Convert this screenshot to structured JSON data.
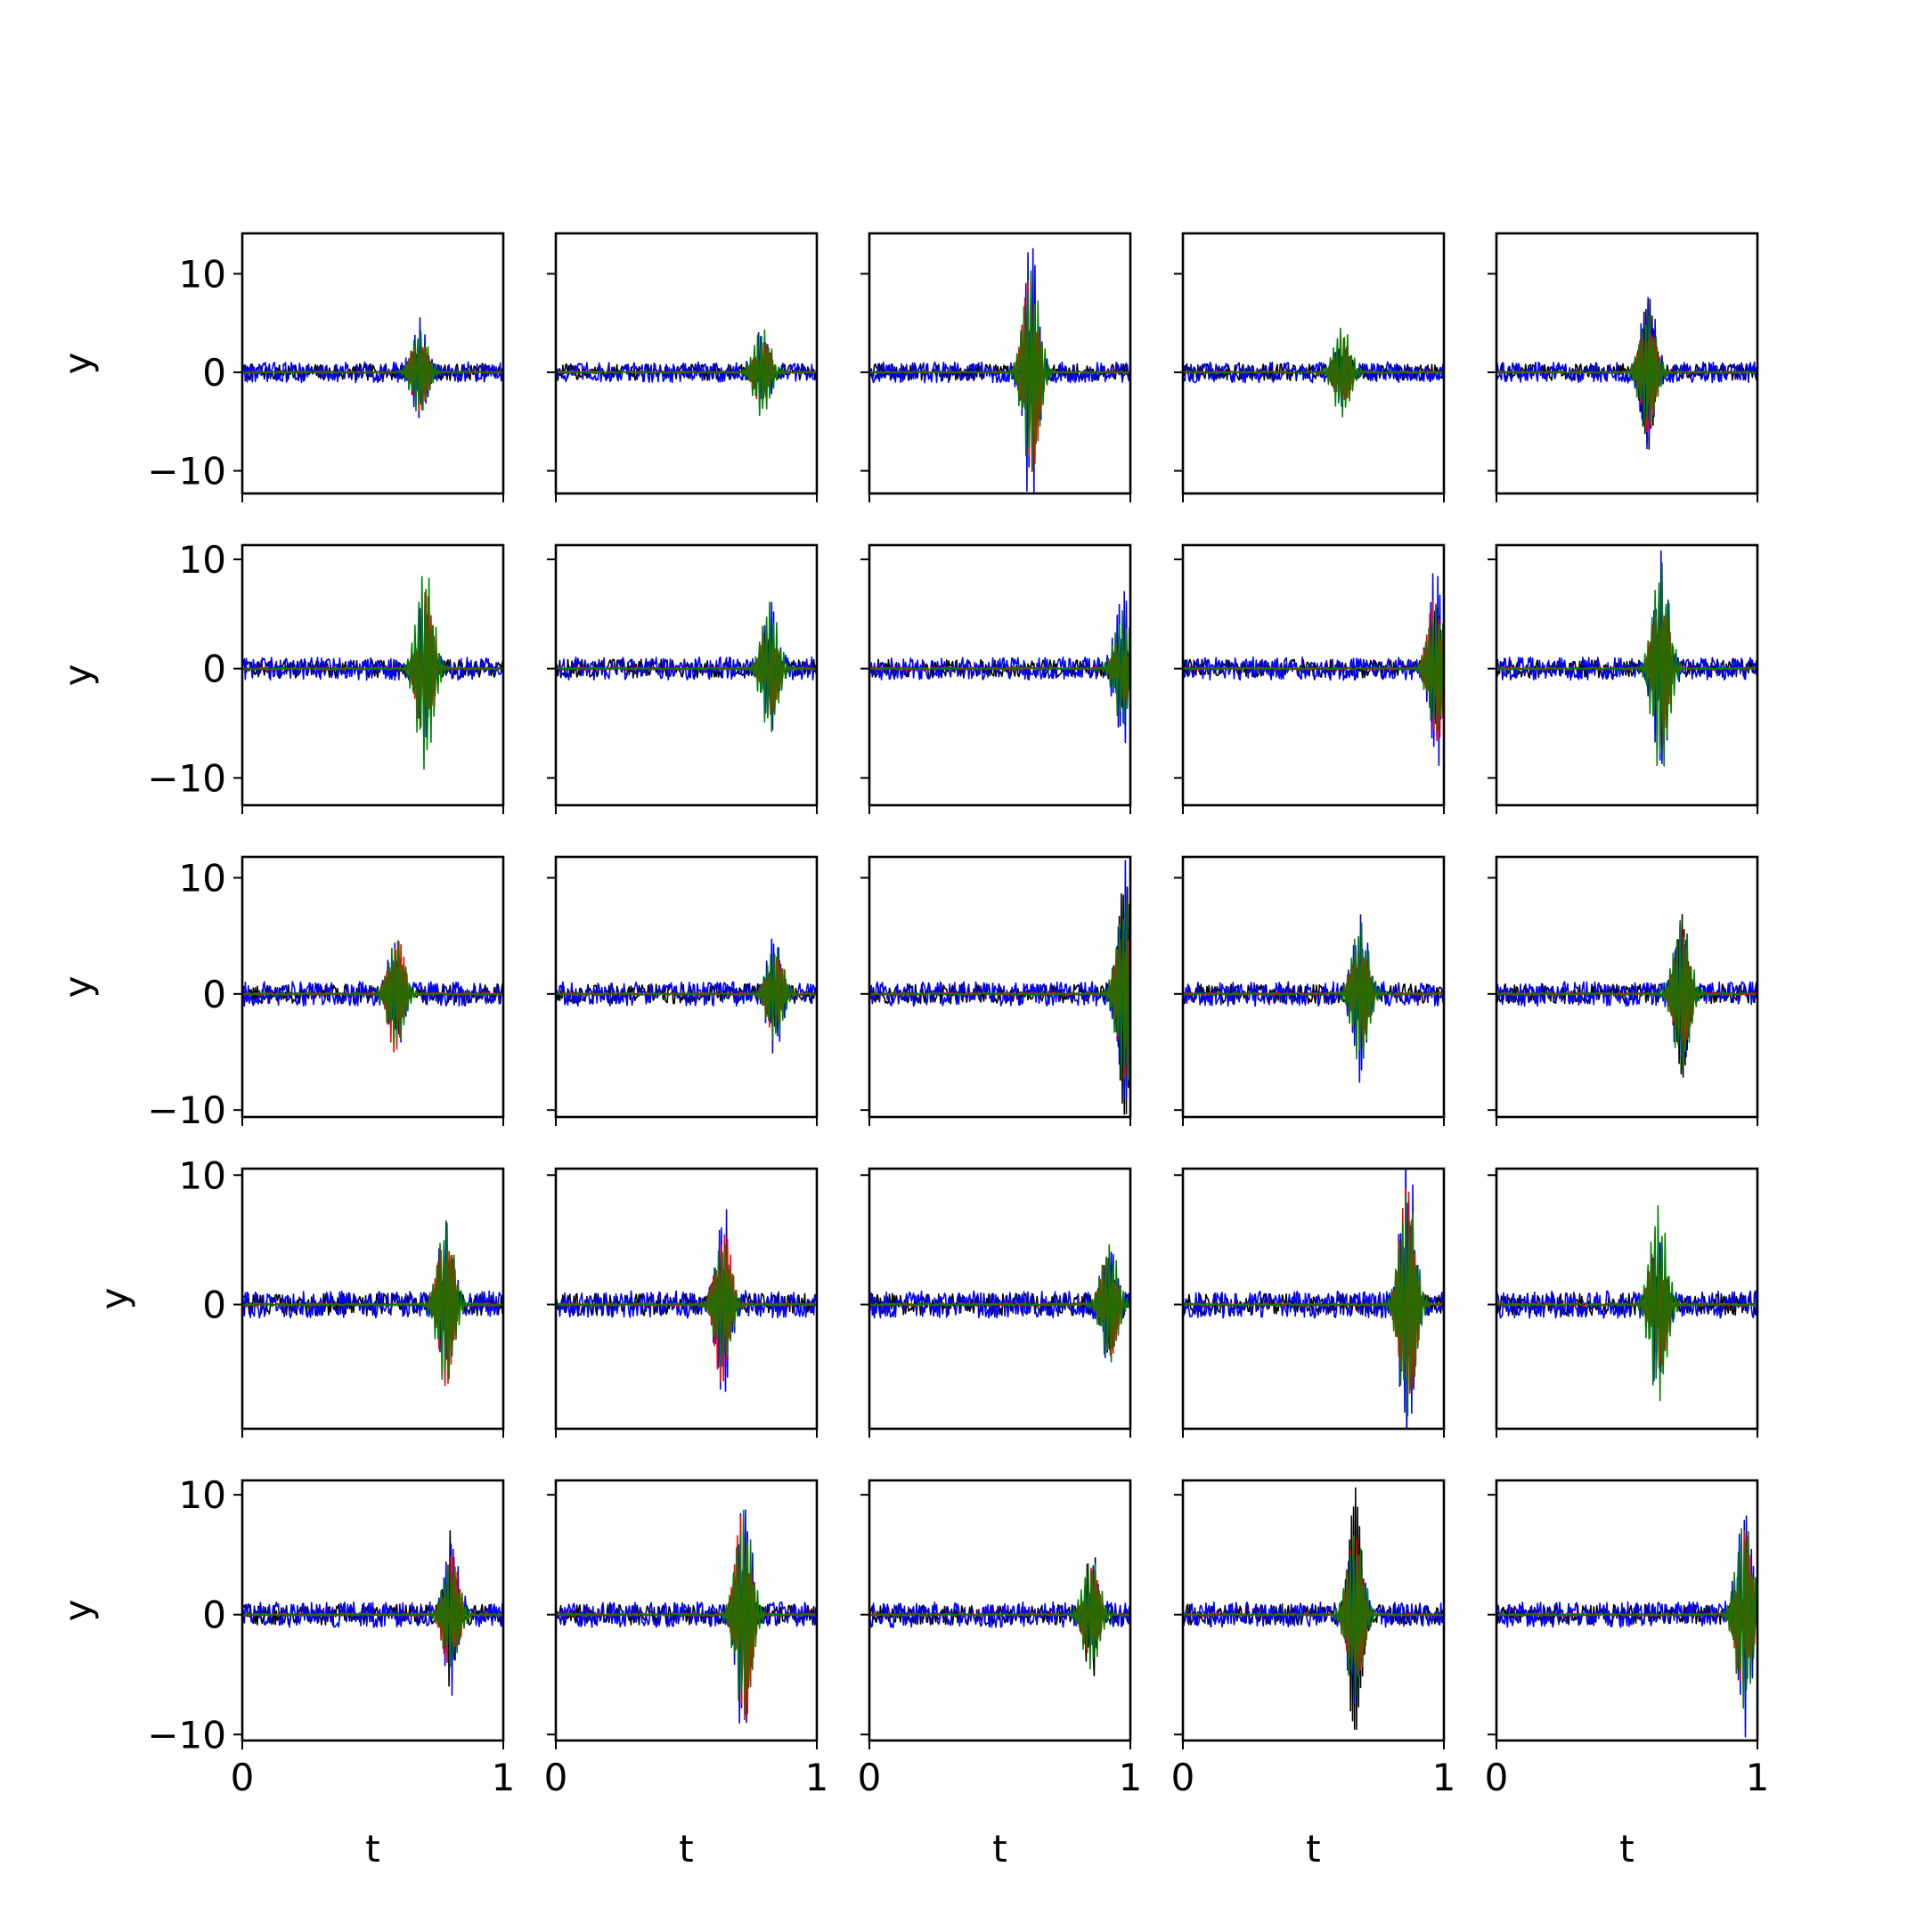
{
  "figure": {
    "rows": 5,
    "cols": 5,
    "sharex": true,
    "sharey": "per-row",
    "xlabel": "t",
    "ylabel": "y",
    "colors": {
      "black": "#000000",
      "blue": "#0000ff",
      "red": "#ff0000",
      "green": "#008000"
    }
  },
  "chart_data": {
    "type": "line",
    "xlim": [
      0,
      1
    ],
    "xticks": [
      "0",
      "1"
    ],
    "rows": [
      {
        "ylim": [
          -12.3,
          14.1
        ],
        "yticks": [
          10,
          0,
          -10
        ],
        "ytick_labels": [
          "10",
          "0",
          "−10"
        ]
      },
      {
        "ylim": [
          -12.5,
          11.3
        ],
        "yticks": [
          10,
          0,
          -10
        ],
        "ytick_labels": [
          "10",
          "0",
          "−10"
        ]
      },
      {
        "ylim": [
          -10.6,
          11.8
        ],
        "yticks": [
          10,
          0,
          -10
        ],
        "ytick_labels": [
          "10",
          "0",
          "−10"
        ]
      },
      {
        "ylim": [
          -9.6,
          10.5
        ],
        "yticks": [
          10,
          0
        ],
        "ytick_labels": [
          "10",
          "0"
        ]
      },
      {
        "ylim": [
          -10.5,
          11.2
        ],
        "yticks": [
          10,
          0,
          -10
        ],
        "ytick_labels": [
          "10",
          "0",
          "−10"
        ]
      }
    ],
    "panels": [
      {
        "row": 0,
        "col": 0,
        "burst_t": 0.68,
        "amps": {
          "black": 2.0,
          "blue": 5.0,
          "red": 4.0,
          "green": 4.2
        }
      },
      {
        "row": 0,
        "col": 1,
        "burst_t": 0.79,
        "amps": {
          "black": 1.8,
          "blue": 3.6,
          "red": 3.2,
          "green": 4.4
        }
      },
      {
        "row": 0,
        "col": 2,
        "burst_t": 0.62,
        "amps": {
          "black": 2.2,
          "blue": 12.8,
          "red": 10.0,
          "green": 10.2
        }
      },
      {
        "row": 0,
        "col": 3,
        "burst_t": 0.61,
        "amps": {
          "black": 2.0,
          "blue": 3.0,
          "red": 3.5,
          "green": 4.6
        }
      },
      {
        "row": 0,
        "col": 4,
        "burst_t": 0.58,
        "amps": {
          "black": 7.2,
          "blue": 8.4,
          "red": 6.0,
          "green": 5.8
        }
      },
      {
        "row": 1,
        "col": 0,
        "burst_t": 0.7,
        "amps": {
          "black": 2.0,
          "blue": 6.2,
          "red": 7.0,
          "green": 9.2
        }
      },
      {
        "row": 1,
        "col": 1,
        "burst_t": 0.82,
        "amps": {
          "black": 2.0,
          "blue": 5.2,
          "red": 4.2,
          "green": 6.0
        }
      },
      {
        "row": 1,
        "col": 2,
        "burst_t": 0.97,
        "amps": {
          "black": 2.8,
          "blue": 7.0,
          "red": 3.0,
          "green": 5.2
        }
      },
      {
        "row": 1,
        "col": 3,
        "burst_t": 0.97,
        "amps": {
          "black": 5.0,
          "blue": 8.3,
          "red": 6.6,
          "green": 5.8
        }
      },
      {
        "row": 1,
        "col": 4,
        "burst_t": 0.63,
        "amps": {
          "black": 3.2,
          "blue": 10.2,
          "red": 7.4,
          "green": 9.6
        }
      },
      {
        "row": 2,
        "col": 0,
        "burst_t": 0.59,
        "amps": {
          "black": 2.2,
          "blue": 4.2,
          "red": 5.0,
          "green": 4.5
        }
      },
      {
        "row": 2,
        "col": 1,
        "burst_t": 0.84,
        "amps": {
          "black": 2.0,
          "blue": 4.4,
          "red": 3.5,
          "green": 4.0
        }
      },
      {
        "row": 2,
        "col": 2,
        "burst_t": 0.98,
        "amps": {
          "black": 9.8,
          "blue": 11.0,
          "red": 7.3,
          "green": 8.0
        }
      },
      {
        "row": 2,
        "col": 3,
        "burst_t": 0.68,
        "amps": {
          "black": 2.0,
          "blue": 7.8,
          "red": 4.8,
          "green": 6.1
        }
      },
      {
        "row": 2,
        "col": 4,
        "burst_t": 0.71,
        "amps": {
          "black": 6.6,
          "blue": 6.0,
          "red": 5.5,
          "green": 6.4
        }
      },
      {
        "row": 3,
        "col": 0,
        "burst_t": 0.78,
        "amps": {
          "black": 3.0,
          "blue": 6.0,
          "red": 6.3,
          "green": 6.2
        }
      },
      {
        "row": 3,
        "col": 1,
        "burst_t": 0.64,
        "amps": {
          "black": 2.0,
          "blue": 7.4,
          "red": 6.0,
          "green": 4.7
        }
      },
      {
        "row": 3,
        "col": 2,
        "burst_t": 0.92,
        "amps": {
          "black": 3.6,
          "blue": 3.8,
          "red": 4.0,
          "green": 4.6
        }
      },
      {
        "row": 3,
        "col": 3,
        "burst_t": 0.86,
        "amps": {
          "black": 2.6,
          "blue": 11.4,
          "red": 9.0,
          "green": 8.6
        }
      },
      {
        "row": 3,
        "col": 4,
        "burst_t": 0.62,
        "amps": {
          "black": 2.0,
          "blue": 5.6,
          "red": 5.0,
          "green": 7.6
        }
      },
      {
        "row": 4,
        "col": 0,
        "burst_t": 0.8,
        "amps": {
          "black": 6.4,
          "blue": 6.0,
          "red": 5.0,
          "green": 4.4
        }
      },
      {
        "row": 4,
        "col": 1,
        "burst_t": 0.72,
        "amps": {
          "black": 2.0,
          "blue": 9.6,
          "red": 8.8,
          "green": 8.6
        }
      },
      {
        "row": 4,
        "col": 2,
        "burst_t": 0.85,
        "amps": {
          "black": 5.6,
          "blue": 3.4,
          "red": 4.0,
          "green": 4.6
        }
      },
      {
        "row": 4,
        "col": 3,
        "burst_t": 0.66,
        "amps": {
          "black": 10.0,
          "blue": 7.0,
          "red": 6.6,
          "green": 6.8
        }
      },
      {
        "row": 4,
        "col": 4,
        "burst_t": 0.95,
        "amps": {
          "black": 3.0,
          "blue": 9.6,
          "red": 7.0,
          "green": 7.8
        }
      }
    ]
  }
}
